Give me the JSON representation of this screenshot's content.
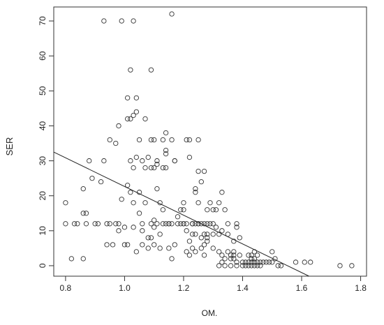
{
  "chart_data": {
    "type": "scatter",
    "title": "",
    "xlabel": "OM.",
    "ylabel": "SER",
    "xlim": [
      0.76,
      1.82
    ],
    "ylim": [
      -3,
      74
    ],
    "xticks": [
      0.8,
      1.0,
      1.2,
      1.4,
      1.6,
      1.8
    ],
    "yticks": [
      0,
      10,
      20,
      30,
      40,
      50,
      60,
      70
    ],
    "xtick_labels": [
      "0.8",
      "1.0",
      "1.2",
      "1.4",
      "1.6",
      "1.8"
    ],
    "ytick_labels": [
      "0",
      "10",
      "20",
      "30",
      "40",
      "50",
      "60",
      "70"
    ],
    "grid": false,
    "marker": "open-circle",
    "colors": {
      "points": "#333333",
      "line": "#222222",
      "axes": "#333333"
    },
    "regression_line": {
      "x": [
        0.76,
        1.625
      ],
      "y": [
        32.5,
        -3
      ]
    },
    "points": [
      [
        0.8,
        18
      ],
      [
        0.8,
        12
      ],
      [
        0.82,
        2
      ],
      [
        0.83,
        12
      ],
      [
        0.84,
        12
      ],
      [
        0.86,
        2
      ],
      [
        0.86,
        15
      ],
      [
        0.86,
        22
      ],
      [
        0.87,
        15
      ],
      [
        0.87,
        12
      ],
      [
        0.88,
        30
      ],
      [
        0.89,
        25
      ],
      [
        0.9,
        12
      ],
      [
        0.91,
        12
      ],
      [
        0.92,
        24
      ],
      [
        0.93,
        70
      ],
      [
        0.93,
        30
      ],
      [
        0.94,
        12
      ],
      [
        0.94,
        6
      ],
      [
        0.95,
        12
      ],
      [
        0.95,
        36
      ],
      [
        0.96,
        6
      ],
      [
        0.97,
        12
      ],
      [
        0.97,
        35
      ],
      [
        0.98,
        40
      ],
      [
        0.98,
        10
      ],
      [
        0.98,
        12
      ],
      [
        0.99,
        70
      ],
      [
        0.99,
        19
      ],
      [
        1.0,
        6
      ],
      [
        1.0,
        11
      ],
      [
        1.01,
        42
      ],
      [
        1.01,
        48
      ],
      [
        1.01,
        23
      ],
      [
        1.01,
        6
      ],
      [
        1.02,
        42
      ],
      [
        1.02,
        56
      ],
      [
        1.02,
        21
      ],
      [
        1.02,
        30
      ],
      [
        1.03,
        70
      ],
      [
        1.03,
        43
      ],
      [
        1.03,
        11
      ],
      [
        1.03,
        28
      ],
      [
        1.03,
        18
      ],
      [
        1.04,
        48
      ],
      [
        1.04,
        44
      ],
      [
        1.04,
        31
      ],
      [
        1.04,
        4
      ],
      [
        1.05,
        36
      ],
      [
        1.05,
        21
      ],
      [
        1.05,
        15
      ],
      [
        1.06,
        30
      ],
      [
        1.06,
        12
      ],
      [
        1.06,
        10
      ],
      [
        1.06,
        6
      ],
      [
        1.07,
        42
      ],
      [
        1.07,
        28
      ],
      [
        1.07,
        18
      ],
      [
        1.08,
        8
      ],
      [
        1.08,
        5
      ],
      [
        1.08,
        31
      ],
      [
        1.09,
        56
      ],
      [
        1.09,
        36
      ],
      [
        1.09,
        28
      ],
      [
        1.09,
        12
      ],
      [
        1.09,
        8
      ],
      [
        1.1,
        28
      ],
      [
        1.1,
        36
      ],
      [
        1.1,
        11
      ],
      [
        1.1,
        13
      ],
      [
        1.1,
        6
      ],
      [
        1.11,
        30
      ],
      [
        1.11,
        29
      ],
      [
        1.11,
        22
      ],
      [
        1.11,
        12
      ],
      [
        1.12,
        9
      ],
      [
        1.12,
        5
      ],
      [
        1.12,
        18
      ],
      [
        1.13,
        36
      ],
      [
        1.13,
        28
      ],
      [
        1.13,
        16
      ],
      [
        1.13,
        12
      ],
      [
        1.14,
        38
      ],
      [
        1.14,
        33
      ],
      [
        1.14,
        32
      ],
      [
        1.14,
        28
      ],
      [
        1.14,
        12
      ],
      [
        1.15,
        12
      ],
      [
        1.15,
        5
      ],
      [
        1.15,
        12
      ],
      [
        1.16,
        72
      ],
      [
        1.16,
        36
      ],
      [
        1.16,
        12
      ],
      [
        1.16,
        2
      ],
      [
        1.17,
        30
      ],
      [
        1.17,
        30
      ],
      [
        1.17,
        6
      ],
      [
        1.18,
        12
      ],
      [
        1.18,
        14
      ],
      [
        1.19,
        16
      ],
      [
        1.19,
        12
      ],
      [
        1.2,
        18
      ],
      [
        1.2,
        16
      ],
      [
        1.2,
        12
      ],
      [
        1.2,
        12
      ],
      [
        1.21,
        36
      ],
      [
        1.21,
        12
      ],
      [
        1.21,
        10
      ],
      [
        1.21,
        4
      ],
      [
        1.22,
        36
      ],
      [
        1.22,
        31
      ],
      [
        1.22,
        7
      ],
      [
        1.22,
        3
      ],
      [
        1.23,
        12
      ],
      [
        1.23,
        9
      ],
      [
        1.23,
        12
      ],
      [
        1.23,
        5
      ],
      [
        1.23,
        12
      ],
      [
        1.24,
        22
      ],
      [
        1.24,
        21
      ],
      [
        1.24,
        12
      ],
      [
        1.24,
        9
      ],
      [
        1.24,
        4
      ],
      [
        1.25,
        36
      ],
      [
        1.25,
        27
      ],
      [
        1.25,
        18
      ],
      [
        1.25,
        12
      ],
      [
        1.25,
        12
      ],
      [
        1.26,
        24
      ],
      [
        1.26,
        12
      ],
      [
        1.26,
        8
      ],
      [
        1.26,
        5
      ],
      [
        1.27,
        27
      ],
      [
        1.27,
        12
      ],
      [
        1.27,
        9
      ],
      [
        1.27,
        6
      ],
      [
        1.27,
        3
      ],
      [
        1.28,
        16
      ],
      [
        1.28,
        12
      ],
      [
        1.28,
        9
      ],
      [
        1.28,
        8
      ],
      [
        1.28,
        7
      ],
      [
        1.29,
        12
      ],
      [
        1.29,
        18
      ],
      [
        1.3,
        16
      ],
      [
        1.3,
        12
      ],
      [
        1.3,
        9
      ],
      [
        1.3,
        5
      ],
      [
        1.31,
        16
      ],
      [
        1.31,
        11
      ],
      [
        1.32,
        18
      ],
      [
        1.32,
        9
      ],
      [
        1.32,
        4
      ],
      [
        1.32,
        0
      ],
      [
        1.33,
        21
      ],
      [
        1.33,
        10
      ],
      [
        1.33,
        3
      ],
      [
        1.33,
        1
      ],
      [
        1.34,
        16
      ],
      [
        1.34,
        2
      ],
      [
        1.34,
        0
      ],
      [
        1.35,
        12
      ],
      [
        1.35,
        9
      ],
      [
        1.35,
        4
      ],
      [
        1.36,
        2
      ],
      [
        1.36,
        3
      ],
      [
        1.36,
        0
      ],
      [
        1.37,
        2
      ],
      [
        1.37,
        3
      ],
      [
        1.37,
        4
      ],
      [
        1.37,
        7
      ],
      [
        1.38,
        11
      ],
      [
        1.38,
        12
      ],
      [
        1.38,
        1
      ],
      [
        1.38,
        0
      ],
      [
        1.39,
        3
      ],
      [
        1.39,
        8
      ],
      [
        1.4,
        1
      ],
      [
        1.4,
        0
      ],
      [
        1.41,
        1
      ],
      [
        1.41,
        0
      ],
      [
        1.42,
        1
      ],
      [
        1.42,
        0
      ],
      [
        1.42,
        3
      ],
      [
        1.43,
        0
      ],
      [
        1.43,
        1
      ],
      [
        1.43,
        2
      ],
      [
        1.43,
        3
      ],
      [
        1.44,
        4
      ],
      [
        1.44,
        0
      ],
      [
        1.44,
        1
      ],
      [
        1.44,
        2
      ],
      [
        1.45,
        3
      ],
      [
        1.45,
        1
      ],
      [
        1.45,
        0
      ],
      [
        1.46,
        1
      ],
      [
        1.46,
        0
      ],
      [
        1.47,
        1
      ],
      [
        1.48,
        1
      ],
      [
        1.49,
        1
      ],
      [
        1.5,
        4
      ],
      [
        1.5,
        1
      ],
      [
        1.51,
        2
      ],
      [
        1.52,
        0
      ],
      [
        1.53,
        0
      ],
      [
        1.58,
        1
      ],
      [
        1.61,
        1
      ],
      [
        1.63,
        1
      ],
      [
        1.73,
        0
      ],
      [
        1.77,
        0
      ]
    ]
  }
}
